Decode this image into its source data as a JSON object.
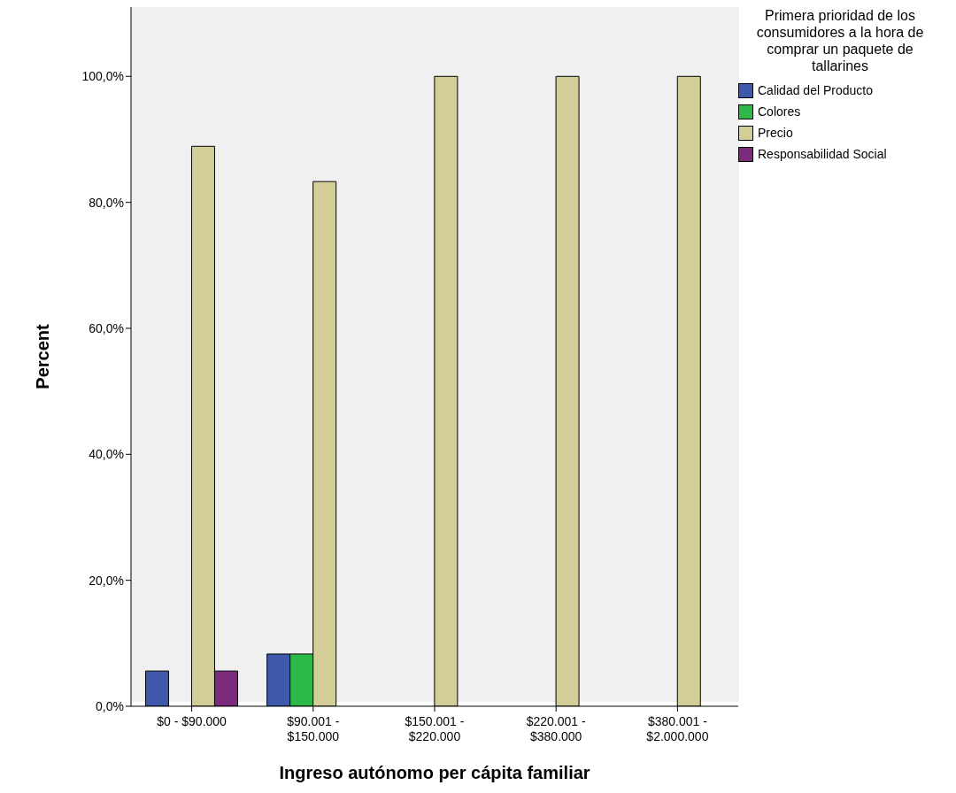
{
  "chart_data": {
    "type": "bar",
    "xlabel": "Ingreso autónomo per cápita familiar",
    "ylabel": "Percent",
    "legend_title": "Primera prioridad de los consumidores a la hora de comprar un paquete de tallarines",
    "categories": [
      "$0 - $90.000",
      "$90.001 -\n$150.000",
      "$150.001 -\n$220.000",
      "$220.001 -\n$380.000",
      "$380.001 -\n$2.000.000"
    ],
    "series": [
      {
        "name": "Calidad del Producto",
        "color": "#3e58ac",
        "values": [
          5.6,
          8.3,
          0,
          0,
          0
        ]
      },
      {
        "name": "Colores",
        "color": "#2db84a",
        "values": [
          0,
          8.3,
          0,
          0,
          0
        ]
      },
      {
        "name": "Precio",
        "color": "#d3ce98",
        "values": [
          88.9,
          83.3,
          100,
          100,
          100
        ]
      },
      {
        "name": "Responsabilidad Social",
        "color": "#7e2a7c",
        "values": [
          5.6,
          0,
          0,
          0,
          0
        ]
      }
    ],
    "ylim": [
      0,
      111
    ],
    "yticks": [
      {
        "value": 0,
        "label": "0,0%"
      },
      {
        "value": 20,
        "label": "20,0%"
      },
      {
        "value": 40,
        "label": "40,0%"
      },
      {
        "value": 60,
        "label": "60,0%"
      },
      {
        "value": 80,
        "label": "80,0%"
      },
      {
        "value": 100,
        "label": "100,0%"
      }
    ],
    "grid": false,
    "legend": "right"
  }
}
